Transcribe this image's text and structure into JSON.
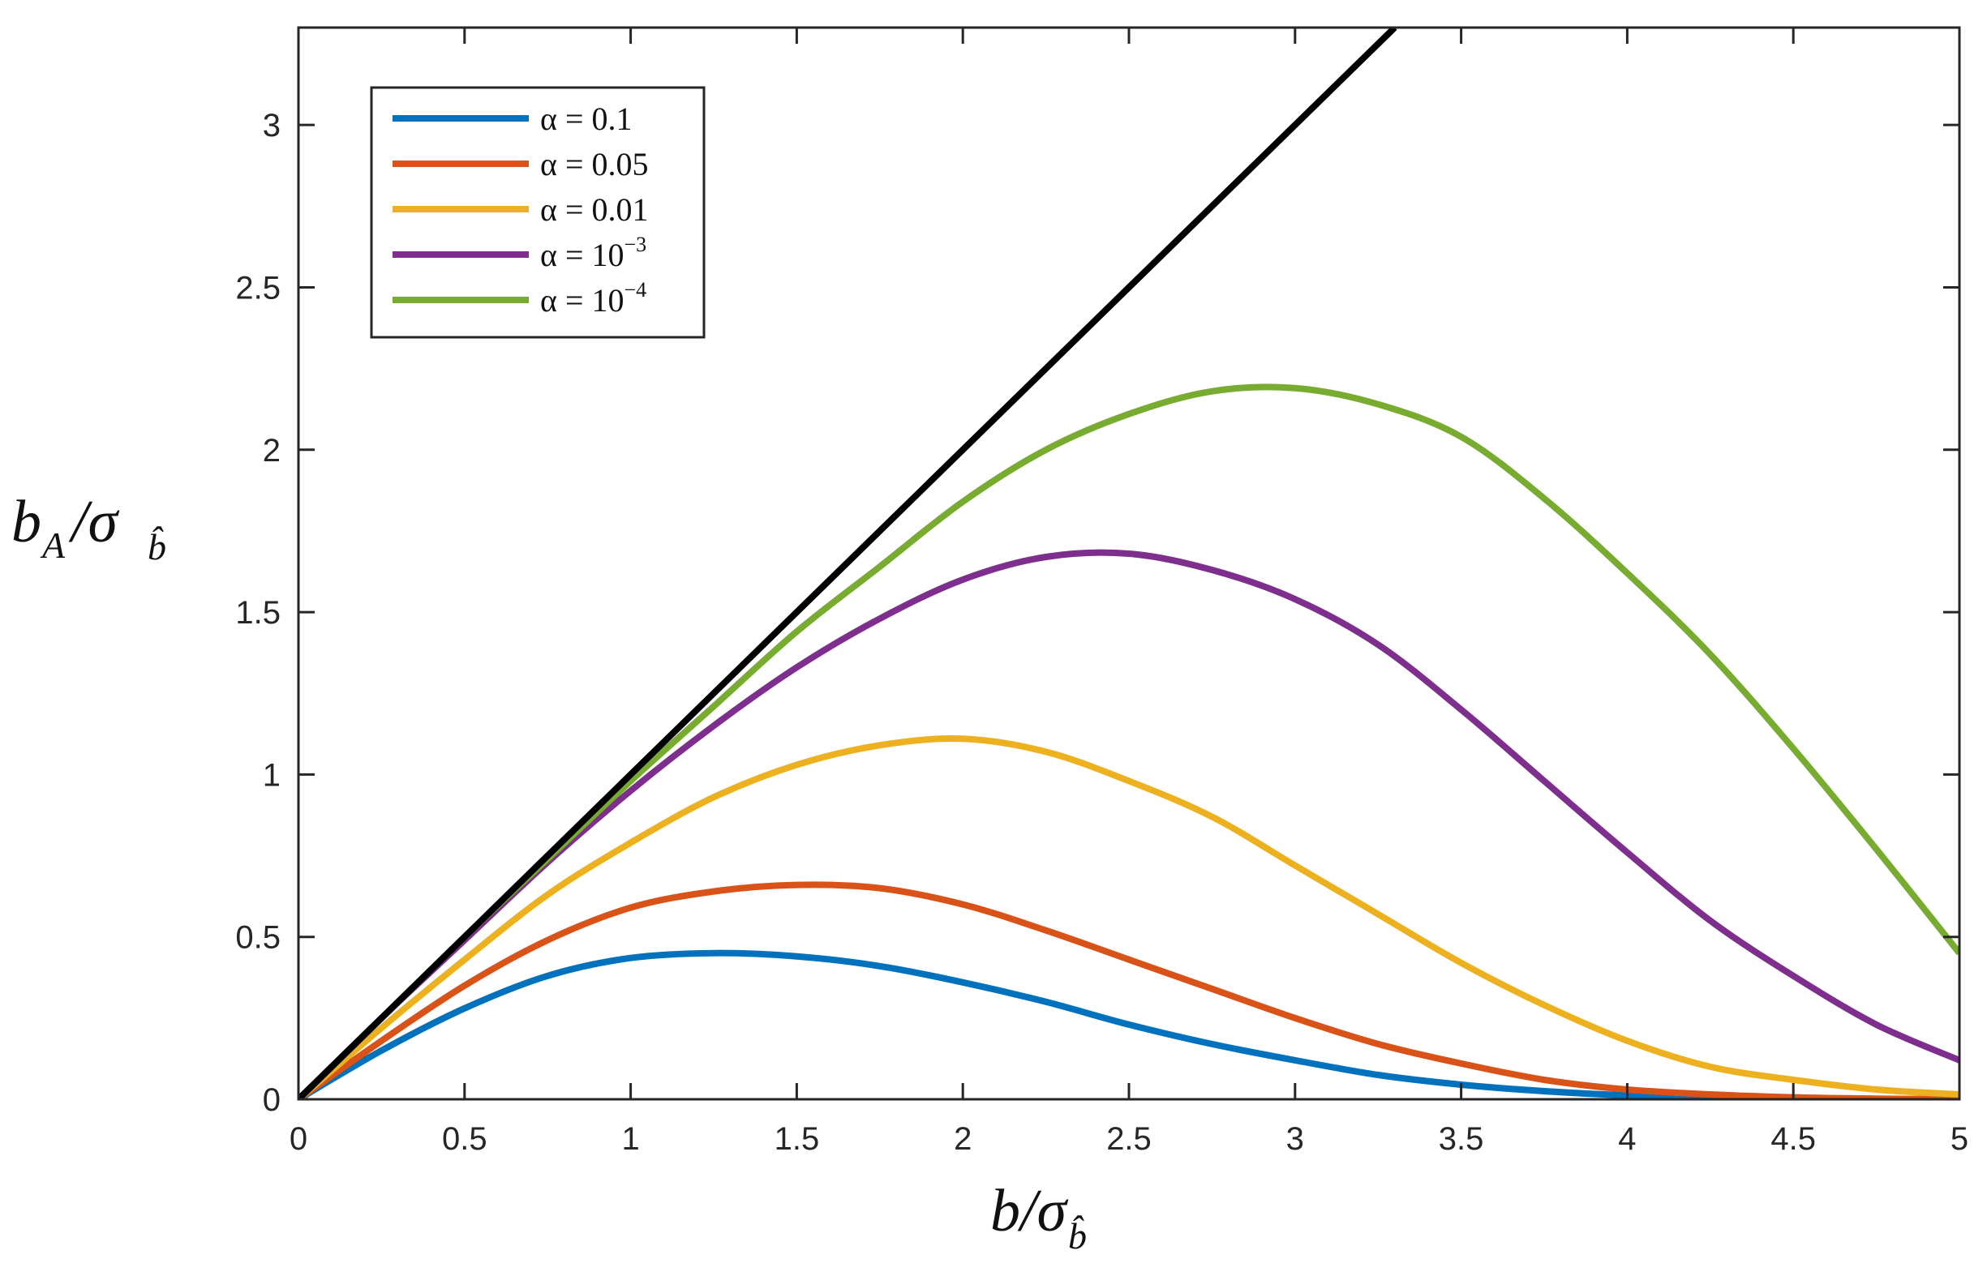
{
  "chart_data": {
    "type": "line",
    "title": "",
    "xlabel": "b/σ_b̂",
    "ylabel": "b_A/σ_b̂",
    "xlim": [
      0,
      5
    ],
    "ylim": [
      0,
      3.3
    ],
    "grid": false,
    "legend_position": "top-left",
    "x_ticks": [
      "0",
      "0.5",
      "1",
      "1.5",
      "2",
      "2.5",
      "3",
      "3.5",
      "4",
      "4.5",
      "5"
    ],
    "y_ticks": [
      "0",
      "0.5",
      "1",
      "1.5",
      "2",
      "2.5",
      "3"
    ],
    "x": [
      0,
      0.25,
      0.5,
      0.75,
      1,
      1.25,
      1.5,
      1.75,
      2,
      2.25,
      2.5,
      2.75,
      3,
      3.25,
      3.5,
      3.75,
      4,
      4.25,
      4.5,
      4.75,
      5
    ],
    "series": [
      {
        "name": "α = 0.1",
        "label_prefix": "α = ",
        "label_base": "0.1",
        "label_exp": "",
        "color": "#0072BD",
        "values": [
          0,
          0.15,
          0.28,
          0.38,
          0.435,
          0.45,
          0.44,
          0.41,
          0.36,
          0.3,
          0.23,
          0.17,
          0.12,
          0.075,
          0.045,
          0.025,
          0.012,
          0.005,
          0.002,
          0.001,
          0
        ]
      },
      {
        "name": "α = 0.05",
        "label_prefix": "α = ",
        "label_base": "0.05",
        "label_exp": "",
        "color": "#D95319",
        "values": [
          0,
          0.18,
          0.35,
          0.49,
          0.59,
          0.64,
          0.66,
          0.65,
          0.6,
          0.52,
          0.43,
          0.34,
          0.25,
          0.17,
          0.11,
          0.06,
          0.03,
          0.015,
          0.006,
          0.002,
          0
        ]
      },
      {
        "name": "α = 0.01",
        "label_prefix": "α = ",
        "label_base": "0.01",
        "label_exp": "",
        "color": "#EDB120",
        "values": [
          0,
          0.22,
          0.43,
          0.63,
          0.79,
          0.93,
          1.03,
          1.09,
          1.11,
          1.07,
          0.98,
          0.87,
          0.72,
          0.57,
          0.42,
          0.29,
          0.18,
          0.1,
          0.06,
          0.03,
          0.015
        ]
      },
      {
        "name": "α = 10^-3",
        "label_prefix": "α = ",
        "label_base": "10",
        "label_exp": "−3",
        "color": "#7E2F8E",
        "values": [
          0,
          0.25,
          0.49,
          0.73,
          0.95,
          1.15,
          1.33,
          1.48,
          1.6,
          1.67,
          1.68,
          1.63,
          1.54,
          1.4,
          1.2,
          0.98,
          0.76,
          0.55,
          0.38,
          0.23,
          0.12
        ]
      },
      {
        "name": "α = 10^-4",
        "label_prefix": "α = ",
        "label_base": "10",
        "label_exp": "−4",
        "color": "#77AC30",
        "values": [
          0,
          0.25,
          0.5,
          0.74,
          0.98,
          1.21,
          1.44,
          1.64,
          1.84,
          2.0,
          2.11,
          2.18,
          2.19,
          2.14,
          2.04,
          1.85,
          1.62,
          1.37,
          1.08,
          0.77,
          0.45
        ]
      }
    ],
    "reference_line": {
      "name": "y = x",
      "color": "#000000",
      "x": [
        0,
        3.3
      ],
      "values": [
        0,
        3.3
      ]
    }
  }
}
